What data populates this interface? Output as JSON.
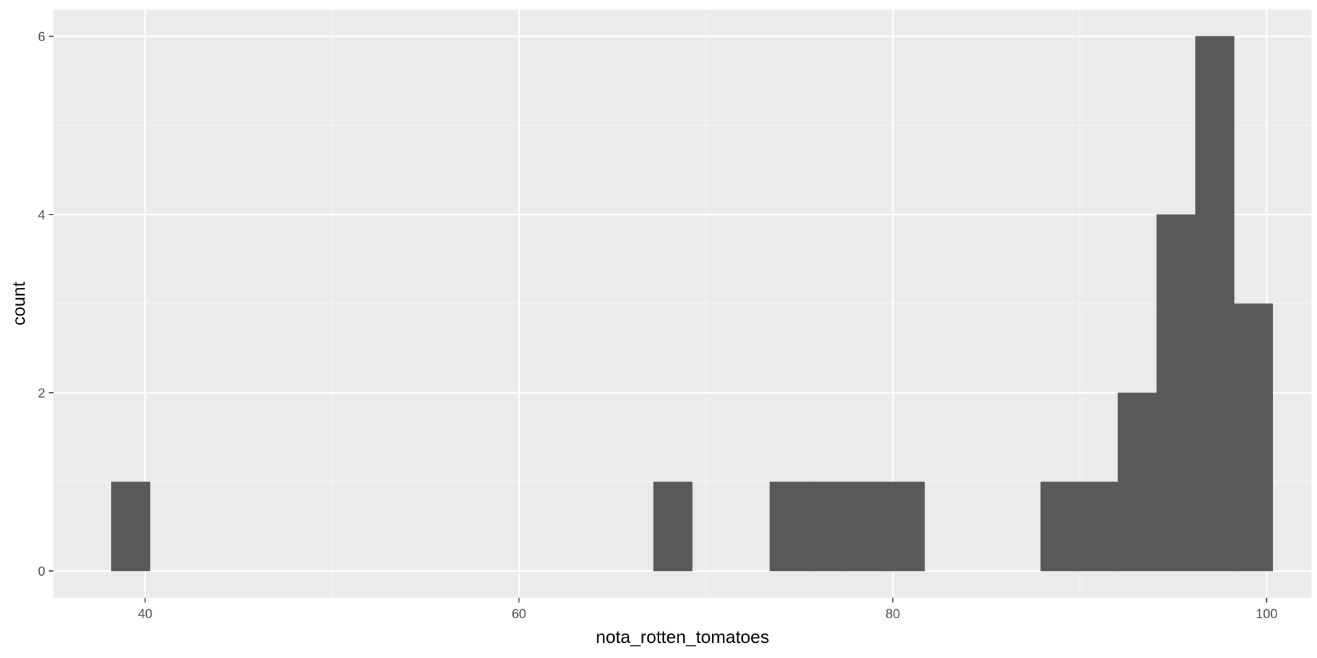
{
  "chart_data": {
    "type": "bar",
    "subtype": "histogram",
    "title": "",
    "xlabel": "nota_rotten_tomatoes",
    "ylabel": "count",
    "xlim": [
      35.1,
      102.4
    ],
    "ylim": [
      -0.3,
      6.3
    ],
    "x_ticks": [
      40,
      60,
      80,
      100
    ],
    "x_tick_labels": [
      "40",
      "60",
      "80",
      "100"
    ],
    "y_ticks": [
      0,
      2,
      4,
      6
    ],
    "y_tick_labels": [
      "0",
      "2",
      "4",
      "6"
    ],
    "bin_width": 2.07,
    "bins": [
      {
        "x_start": 38.2,
        "x_end": 40.27,
        "count": 1
      },
      {
        "x_start": 67.2,
        "x_end": 69.27,
        "count": 1
      },
      {
        "x_start": 73.42,
        "x_end": 75.49,
        "count": 1
      },
      {
        "x_start": 75.49,
        "x_end": 77.56,
        "count": 1
      },
      {
        "x_start": 77.56,
        "x_end": 79.63,
        "count": 1
      },
      {
        "x_start": 79.63,
        "x_end": 81.7,
        "count": 1
      },
      {
        "x_start": 87.91,
        "x_end": 89.98,
        "count": 1
      },
      {
        "x_start": 89.98,
        "x_end": 92.05,
        "count": 1
      },
      {
        "x_start": 92.05,
        "x_end": 94.12,
        "count": 2
      },
      {
        "x_start": 94.12,
        "x_end": 96.19,
        "count": 4
      },
      {
        "x_start": 96.19,
        "x_end": 98.26,
        "count": 6
      },
      {
        "x_start": 98.26,
        "x_end": 100.33,
        "count": 3
      }
    ],
    "grid": true,
    "legend": "none",
    "colors": {
      "panel_background": "#ebebeb",
      "grid_major": "#ffffff",
      "grid_minor": "#f5f5f5",
      "bar_fill": "#595959",
      "tick_text": "#4d4d4d",
      "axis_title_text": "#000000",
      "tick_mark": "#333333"
    }
  }
}
